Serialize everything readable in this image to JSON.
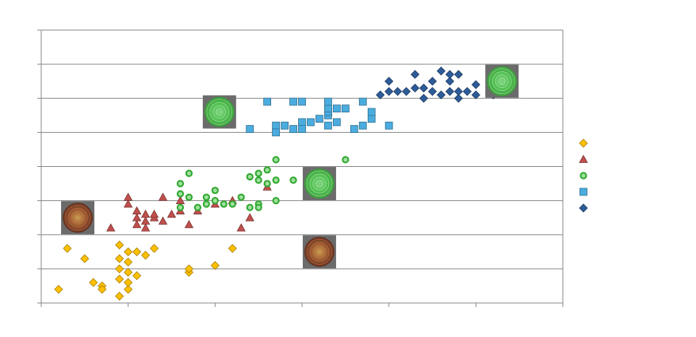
{
  "chart_data": {
    "type": "scatter",
    "title": "",
    "xlabel": "",
    "ylabel": "",
    "xlim": [
      0,
      60
    ],
    "ylim": [
      0,
      8
    ],
    "grid": true,
    "legend_position": "right",
    "series": [
      {
        "marker": "diamond",
        "color": "#FFC000",
        "points": [
          [
            2,
            0.4
          ],
          [
            3,
            1.6
          ],
          [
            5,
            1.3
          ],
          [
            6,
            0.6
          ],
          [
            7,
            0.5
          ],
          [
            7,
            0.4
          ],
          [
            9,
            0.2
          ],
          [
            9,
            0.7
          ],
          [
            9,
            1.0
          ],
          [
            9,
            1.3
          ],
          [
            9,
            1.7
          ],
          [
            10,
            0.4
          ],
          [
            10,
            0.6
          ],
          [
            10,
            0.9
          ],
          [
            10,
            1.2
          ],
          [
            10,
            1.5
          ],
          [
            11,
            0.8
          ],
          [
            11,
            1.5
          ],
          [
            12,
            1.4
          ],
          [
            13,
            1.6
          ],
          [
            17,
            0.9
          ],
          [
            17,
            1.0
          ],
          [
            20,
            1.1
          ],
          [
            22,
            1.6
          ]
        ]
      },
      {
        "marker": "triangle",
        "color": "#C0504D",
        "points": [
          [
            8,
            2.2
          ],
          [
            10,
            2.9
          ],
          [
            10,
            3.1
          ],
          [
            11,
            2.7
          ],
          [
            11,
            2.5
          ],
          [
            11,
            2.3
          ],
          [
            12,
            2.4
          ],
          [
            12,
            2.6
          ],
          [
            12,
            2.2
          ],
          [
            13,
            2.5
          ],
          [
            13,
            2.6
          ],
          [
            14,
            2.4
          ],
          [
            14,
            3.1
          ],
          [
            15,
            2.6
          ],
          [
            16,
            2.7
          ],
          [
            16,
            3.0
          ],
          [
            17,
            2.3
          ],
          [
            18,
            2.7
          ],
          [
            20,
            2.9
          ],
          [
            22,
            3.0
          ],
          [
            23,
            2.2
          ],
          [
            24,
            2.5
          ],
          [
            26,
            3.4
          ]
        ]
      },
      {
        "marker": "circle",
        "color": "#2FA82F",
        "points": [
          [
            16,
            2.8
          ],
          [
            16,
            3.2
          ],
          [
            16,
            3.5
          ],
          [
            17,
            3.1
          ],
          [
            17,
            3.8
          ],
          [
            18,
            2.8
          ],
          [
            19,
            2.9
          ],
          [
            19,
            3.1
          ],
          [
            20,
            3.3
          ],
          [
            20,
            3.0
          ],
          [
            21,
            2.9
          ],
          [
            22,
            2.9
          ],
          [
            23,
            3.1
          ],
          [
            24,
            2.8
          ],
          [
            24,
            3.7
          ],
          [
            25,
            2.9
          ],
          [
            25,
            2.8
          ],
          [
            25,
            3.6
          ],
          [
            25,
            3.8
          ],
          [
            26,
            3.5
          ],
          [
            26,
            3.9
          ],
          [
            27,
            3.0
          ],
          [
            27,
            3.6
          ],
          [
            27,
            4.2
          ],
          [
            29,
            3.6
          ],
          [
            35,
            4.2
          ]
        ]
      },
      {
        "marker": "square",
        "color": "#4BACDF",
        "points": [
          [
            24,
            5.1
          ],
          [
            26,
            5.9
          ],
          [
            27,
            5.2
          ],
          [
            27,
            5.0
          ],
          [
            28,
            5.2
          ],
          [
            29,
            5.1
          ],
          [
            29,
            5.9
          ],
          [
            30,
            5.3
          ],
          [
            30,
            5.1
          ],
          [
            30,
            5.9
          ],
          [
            31,
            5.3
          ],
          [
            32,
            5.4
          ],
          [
            33,
            5.5
          ],
          [
            33,
            5.6
          ],
          [
            33,
            5.7
          ],
          [
            33,
            5.9
          ],
          [
            33,
            5.2
          ],
          [
            34,
            5.7
          ],
          [
            34,
            5.3
          ],
          [
            35,
            5.7
          ],
          [
            36,
            5.1
          ],
          [
            37,
            5.2
          ],
          [
            37,
            5.9
          ],
          [
            38,
            5.4
          ],
          [
            38,
            5.6
          ],
          [
            40,
            5.2
          ]
        ]
      },
      {
        "marker": "diamond",
        "color": "#2E5C99",
        "points": [
          [
            39,
            6.1
          ],
          [
            40,
            6.2
          ],
          [
            40,
            6.5
          ],
          [
            41,
            6.2
          ],
          [
            42,
            6.2
          ],
          [
            43,
            6.3
          ],
          [
            43,
            6.7
          ],
          [
            44,
            6.0
          ],
          [
            44,
            6.3
          ],
          [
            45,
            6.2
          ],
          [
            45,
            6.5
          ],
          [
            46,
            6.1
          ],
          [
            46,
            6.8
          ],
          [
            47,
            6.2
          ],
          [
            47,
            6.5
          ],
          [
            47,
            6.7
          ],
          [
            48,
            6.0
          ],
          [
            48,
            6.2
          ],
          [
            48,
            6.7
          ],
          [
            49,
            6.2
          ],
          [
            50,
            6.1
          ],
          [
            50,
            6.4
          ],
          [
            52,
            6.1
          ],
          [
            52,
            6.2
          ],
          [
            54,
            6.5
          ]
        ]
      }
    ],
    "legend_entries": [
      "",
      "",
      "",
      "",
      ""
    ],
    "image_markers": [
      {
        "x": 4.2,
        "y": 2.5,
        "style": "red-target"
      },
      {
        "x": 20.5,
        "y": 5.6,
        "style": "green-target"
      },
      {
        "x": 32.0,
        "y": 3.5,
        "style": "green-target"
      },
      {
        "x": 32.0,
        "y": 1.5,
        "style": "red-target"
      },
      {
        "x": 53.0,
        "y": 6.5,
        "style": "green-target"
      }
    ]
  }
}
